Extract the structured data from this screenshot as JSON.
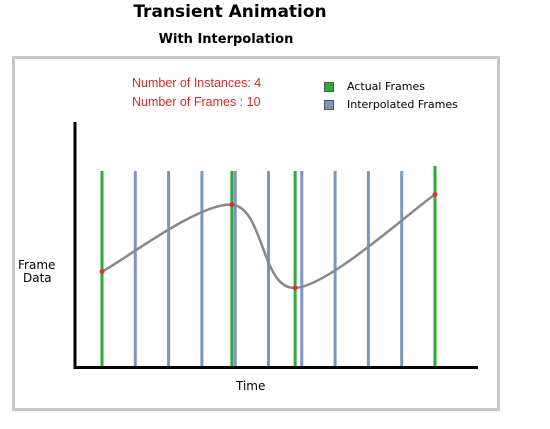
{
  "title": "Transient Animation",
  "subtitle": "With Interpolation",
  "info": {
    "instances": "Number of Instances: 4",
    "frames": "Number of Frames   : 10"
  },
  "legend": {
    "actual": "Actual Frames",
    "interpolated": "Interpolated Frames"
  },
  "axes": {
    "ylabel_line1": "Frame",
    "ylabel_line2": "Data",
    "xlabel": "Time"
  },
  "colors": {
    "actual": "#2eaa3c",
    "interpolated": "#7a98bd",
    "curve": "#888888",
    "points": "#e03030",
    "info_text": "#d92a2a"
  },
  "chart_data": {
    "type": "line",
    "title": "Transient Animation",
    "subtitle": "With Interpolation",
    "xlabel": "Time",
    "ylabel": "Frame Data",
    "actual_frames": [
      0,
      3.9,
      5.8,
      10
    ],
    "interpolated_frames": [
      1,
      2,
      3,
      4,
      5,
      6,
      7,
      8,
      9
    ],
    "curve_keypoints": [
      {
        "t": 0,
        "v": 0.45
      },
      {
        "t": 3.9,
        "v": 0.78
      },
      {
        "t": 5.8,
        "v": 0.37
      },
      {
        "t": 10,
        "v": 0.83
      }
    ]
  }
}
